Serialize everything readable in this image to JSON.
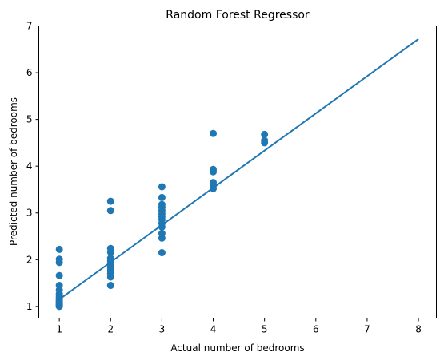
{
  "chart_data": {
    "type": "scatter",
    "title": "Random Forest Regressor",
    "xlabel": "Actual number of bedrooms",
    "ylabel": "Predicted number of bedrooms",
    "xlim": [
      0.6,
      8.35
    ],
    "ylim": [
      0.75,
      7.0
    ],
    "xticks": [
      1,
      2,
      3,
      4,
      5,
      6,
      7,
      8
    ],
    "yticks": [
      1,
      2,
      3,
      4,
      5,
      6,
      7
    ],
    "grid": false,
    "color": "#1f77b4",
    "points": [
      {
        "x": 1,
        "y": 1.0
      },
      {
        "x": 1,
        "y": 1.02
      },
      {
        "x": 1,
        "y": 1.04
      },
      {
        "x": 1,
        "y": 1.06
      },
      {
        "x": 1,
        "y": 1.08
      },
      {
        "x": 1,
        "y": 1.1
      },
      {
        "x": 1,
        "y": 1.12
      },
      {
        "x": 1,
        "y": 1.15
      },
      {
        "x": 1,
        "y": 1.18
      },
      {
        "x": 1,
        "y": 1.22
      },
      {
        "x": 1,
        "y": 1.27
      },
      {
        "x": 1,
        "y": 1.35
      },
      {
        "x": 1,
        "y": 1.45
      },
      {
        "x": 1,
        "y": 1.66
      },
      {
        "x": 1,
        "y": 1.94
      },
      {
        "x": 1,
        "y": 2.01
      },
      {
        "x": 1,
        "y": 2.22
      },
      {
        "x": 2,
        "y": 1.45
      },
      {
        "x": 2,
        "y": 1.63
      },
      {
        "x": 2,
        "y": 1.7
      },
      {
        "x": 2,
        "y": 1.76
      },
      {
        "x": 2,
        "y": 1.82
      },
      {
        "x": 2,
        "y": 1.88
      },
      {
        "x": 2,
        "y": 1.93
      },
      {
        "x": 2,
        "y": 1.98
      },
      {
        "x": 2,
        "y": 2.03
      },
      {
        "x": 2,
        "y": 2.16
      },
      {
        "x": 2,
        "y": 2.24
      },
      {
        "x": 2,
        "y": 3.05
      },
      {
        "x": 2,
        "y": 3.25
      },
      {
        "x": 3,
        "y": 2.15
      },
      {
        "x": 3,
        "y": 2.46
      },
      {
        "x": 3,
        "y": 2.56
      },
      {
        "x": 3,
        "y": 2.7
      },
      {
        "x": 3,
        "y": 2.78
      },
      {
        "x": 3,
        "y": 2.86
      },
      {
        "x": 3,
        "y": 2.92
      },
      {
        "x": 3,
        "y": 2.98
      },
      {
        "x": 3,
        "y": 3.05
      },
      {
        "x": 3,
        "y": 3.12
      },
      {
        "x": 3,
        "y": 3.18
      },
      {
        "x": 3,
        "y": 3.33
      },
      {
        "x": 3,
        "y": 3.56
      },
      {
        "x": 4,
        "y": 3.52
      },
      {
        "x": 4,
        "y": 3.58
      },
      {
        "x": 4,
        "y": 3.65
      },
      {
        "x": 4,
        "y": 3.88
      },
      {
        "x": 4,
        "y": 3.93
      },
      {
        "x": 4,
        "y": 4.7
      },
      {
        "x": 5,
        "y": 4.5
      },
      {
        "x": 5,
        "y": 4.55
      },
      {
        "x": 5,
        "y": 4.68
      }
    ],
    "fit_line": {
      "x": [
        1,
        8
      ],
      "y": [
        1.15,
        6.72
      ]
    }
  }
}
